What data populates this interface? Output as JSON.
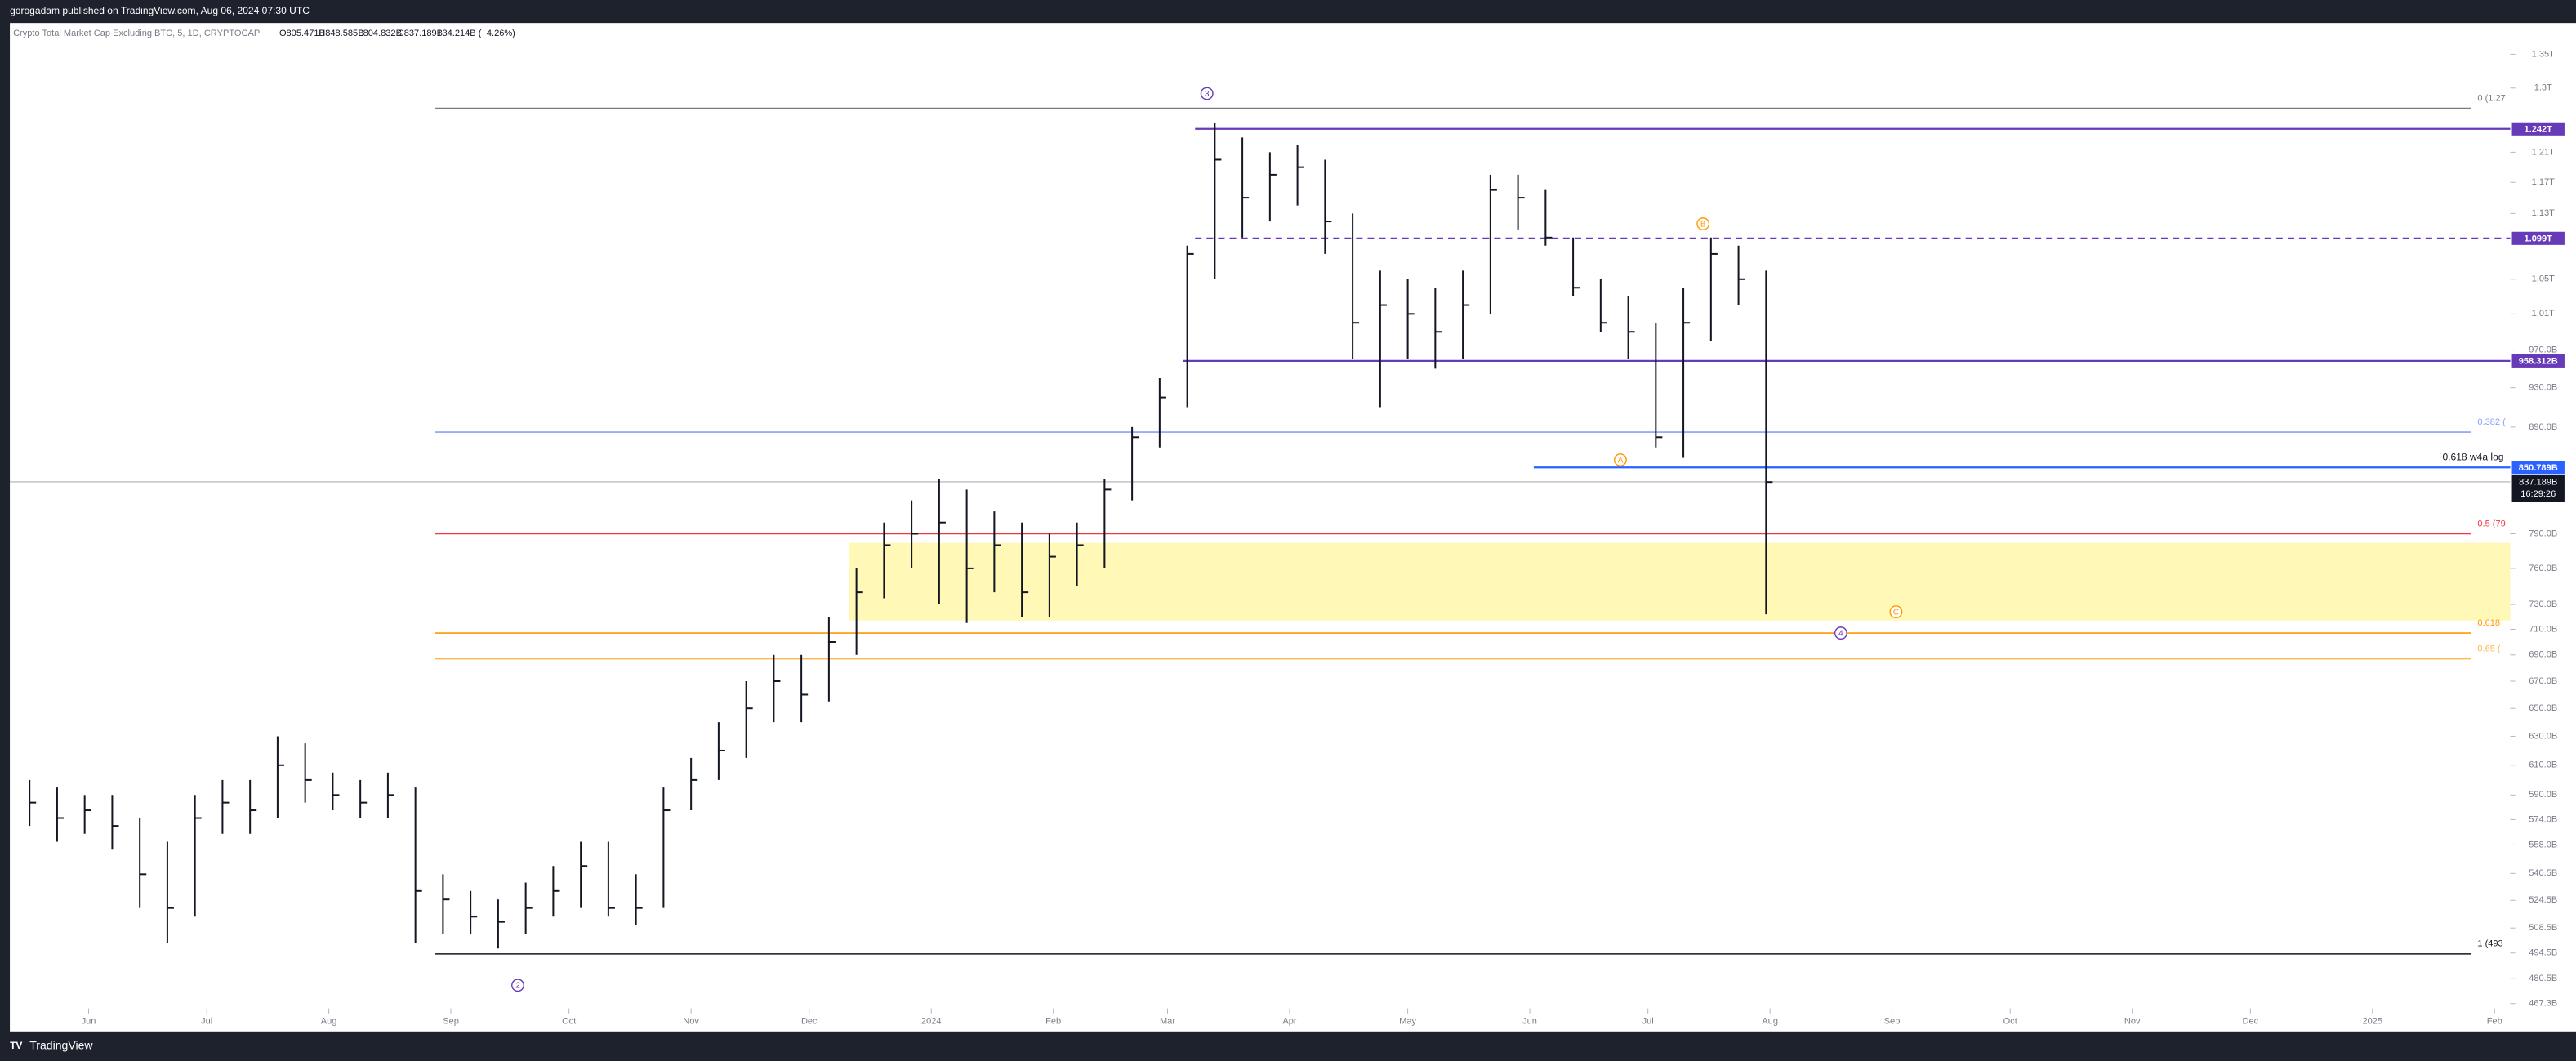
{
  "header": {
    "author_line": "gorogadam published on TradingView.com, Aug 06, 2024 07:30 UTC",
    "symbol": "Crypto Total Market Cap Excluding BTC, 5, 1D, CRYPTOCAP",
    "ohlc_info": [
      "O805.471B",
      "H848.585B",
      "L804.832B",
      "C837.189B",
      "+34.214B (+4.26%)"
    ]
  },
  "footer": {
    "brand": "TradingView"
  },
  "chart_data": {
    "type": "ohlc",
    "color": "#131722",
    "log_scale": true,
    "x": [
      -15,
      -8,
      -1,
      6,
      13,
      20,
      27,
      34,
      41,
      48,
      55,
      62,
      69,
      76,
      83,
      90,
      97,
      104,
      111,
      118,
      125,
      132,
      139,
      146,
      153,
      160,
      167,
      174,
      181,
      188,
      195,
      202,
      209,
      216,
      223,
      230,
      237,
      244,
      251,
      258,
      265,
      272,
      279,
      286,
      293,
      300,
      307,
      314,
      321,
      328,
      335,
      342,
      349,
      356,
      363,
      370,
      377,
      384,
      391,
      398,
      405,
      412,
      419,
      426
    ],
    "high": [
      600,
      595,
      590,
      590,
      575,
      560,
      590,
      600,
      600,
      630,
      625,
      605,
      600,
      605,
      595,
      540,
      530,
      525,
      535,
      545,
      560,
      560,
      540,
      595,
      615,
      640,
      670,
      690,
      690,
      720,
      760,
      800,
      820,
      840,
      830,
      810,
      800,
      790,
      800,
      840,
      890,
      940,
      1090,
      1250,
      1230,
      1210,
      1220,
      1200,
      1130,
      1060,
      1050,
      1040,
      1060,
      1180,
      1180,
      1160,
      1100,
      1050,
      1030,
      1000,
      1040,
      1100,
      1090,
      1060
    ],
    "low": [
      570,
      560,
      565,
      555,
      520,
      500,
      515,
      565,
      565,
      575,
      585,
      580,
      575,
      575,
      500,
      505,
      505,
      497,
      505,
      515,
      520,
      515,
      510,
      520,
      580,
      600,
      615,
      640,
      640,
      655,
      690,
      735,
      760,
      730,
      715,
      740,
      720,
      720,
      745,
      760,
      820,
      870,
      910,
      1050,
      1100,
      1120,
      1140,
      1080,
      960,
      910,
      960,
      950,
      960,
      1010,
      1110,
      1090,
      1030,
      990,
      960,
      870,
      860,
      980,
      1020,
      722
    ],
    "close": [
      585,
      575,
      580,
      570,
      540,
      520,
      575,
      585,
      580,
      610,
      600,
      590,
      585,
      590,
      530,
      525,
      515,
      512,
      520,
      530,
      545,
      520,
      520,
      580,
      600,
      620,
      650,
      670,
      660,
      700,
      740,
      780,
      790,
      800,
      760,
      780,
      740,
      770,
      780,
      830,
      880,
      920,
      1080,
      1200,
      1150,
      1180,
      1190,
      1120,
      1000,
      1020,
      1010,
      990,
      1020,
      1160,
      1150,
      1100,
      1040,
      1000,
      990,
      880,
      1000,
      1080,
      1050,
      837
    ],
    "xlim": [
      -20,
      615
    ],
    "ylim": [
      453,
      1398
    ],
    "xticks": [
      {
        "value": 0,
        "label": "Jun"
      },
      {
        "value": 30,
        "label": "Jul"
      },
      {
        "value": 61,
        "label": "Aug"
      },
      {
        "value": 92,
        "label": "Sep"
      },
      {
        "value": 122,
        "label": "Oct"
      },
      {
        "value": 153,
        "label": "Nov"
      },
      {
        "value": 183,
        "label": "Dec"
      },
      {
        "value": 214,
        "label": "2024"
      },
      {
        "value": 245,
        "label": "Feb"
      },
      {
        "value": 274,
        "label": "Mar"
      },
      {
        "value": 305,
        "label": "Apr"
      },
      {
        "value": 335,
        "label": "May"
      },
      {
        "value": 366,
        "label": "Jun"
      },
      {
        "value": 396,
        "label": "Jul"
      },
      {
        "value": 427,
        "label": "Aug"
      },
      {
        "value": 458,
        "label": "Sep"
      },
      {
        "value": 488,
        "label": "Oct"
      },
      {
        "value": 519,
        "label": "Nov"
      },
      {
        "value": 549,
        "label": "Dec"
      },
      {
        "value": 580,
        "label": "2025"
      },
      {
        "value": 611,
        "label": "Feb"
      }
    ],
    "yticks": [
      {
        "value": 1350,
        "label": "1.35T"
      },
      {
        "value": 1300,
        "label": "1.3T"
      },
      {
        "value": 1210,
        "label": "1.21T"
      },
      {
        "value": 1170,
        "label": "1.17T"
      },
      {
        "value": 1130,
        "label": "1.13T"
      },
      {
        "value": 1050,
        "label": "1.05T"
      },
      {
        "value": 1010,
        "label": "1.01T"
      },
      {
        "value": 970,
        "label": "970.0B"
      },
      {
        "value": 930,
        "label": "930.0B"
      },
      {
        "value": 890,
        "label": "890.0B"
      },
      {
        "value": 790,
        "label": "790.0B"
      },
      {
        "value": 760,
        "label": "760.0B"
      },
      {
        "value": 730,
        "label": "730.0B"
      },
      {
        "value": 710,
        "label": "710.0B"
      },
      {
        "value": 690,
        "label": "690.0B"
      },
      {
        "value": 670,
        "label": "670.0B"
      },
      {
        "value": 650,
        "label": "650.0B"
      },
      {
        "value": 630,
        "label": "630.0B"
      },
      {
        "value": 610,
        "label": "610.0B"
      },
      {
        "value": 590,
        "label": "590.0B"
      },
      {
        "value": 574,
        "label": "574.0B"
      },
      {
        "value": 558,
        "label": "558.0B"
      },
      {
        "value": 540.5,
        "label": "540.5B"
      },
      {
        "value": 524.5,
        "label": "524.5B"
      },
      {
        "value": 508.5,
        "label": "508.5B"
      },
      {
        "value": 494.5,
        "label": "494.5B"
      },
      {
        "value": 480.5,
        "label": "480.5B"
      },
      {
        "value": 467.3,
        "label": "467.3B"
      }
    ],
    "fib_levels": [
      {
        "value": 1271,
        "label": "0 (1.27",
        "color": "#787b86"
      },
      {
        "value": 885,
        "label": "0.382 (",
        "color": "#8c9eff"
      },
      {
        "value": 790,
        "label": "0.5 (79",
        "color": "#f23645"
      },
      {
        "value": 707,
        "label": "0.618",
        "color": "#ff9800"
      },
      {
        "value": 687,
        "label": "0.65 (",
        "color": "#ffb74d"
      },
      {
        "value": 494,
        "label": "1 (493",
        "color": "#131722"
      }
    ],
    "fib_range": [
      88,
      605
    ],
    "price_lines": [
      {
        "value": 1242,
        "label": "1.242T",
        "color": "#673ab7",
        "start": 281,
        "dashed": false
      },
      {
        "value": 1099,
        "label": "1.099T",
        "color": "#673ab7",
        "start": 281,
        "dashed": true
      },
      {
        "value": 958.312,
        "label": "958.312B",
        "color": "#673ab7",
        "start": 278,
        "dashed": false
      },
      {
        "value": 850.789,
        "label": "850.789B",
        "color": "#2962ff",
        "start": 367,
        "dashed": false,
        "text": "0.618  w4a log"
      }
    ],
    "last_price": {
      "value": 837.189,
      "label": "837.189B",
      "countdown": "16:29:26"
    },
    "zone": {
      "low": 717,
      "high": 782,
      "start": 193,
      "color": "#fff59d"
    },
    "waves": [
      {
        "label": "3",
        "x": 284,
        "y": 1292,
        "color": "#673ab7"
      },
      {
        "label": "2",
        "x": 109,
        "y": 477,
        "color": "#673ab7"
      },
      {
        "label": "4",
        "x": 445,
        "y": 707,
        "color": "#673ab7"
      },
      {
        "label": "A",
        "x": 389,
        "y": 858,
        "color": "#ff9800"
      },
      {
        "label": "B",
        "x": 410,
        "y": 1117,
        "color": "#ff9800"
      },
      {
        "label": "C",
        "x": 459,
        "y": 724,
        "color": "#ff9800"
      }
    ]
  }
}
